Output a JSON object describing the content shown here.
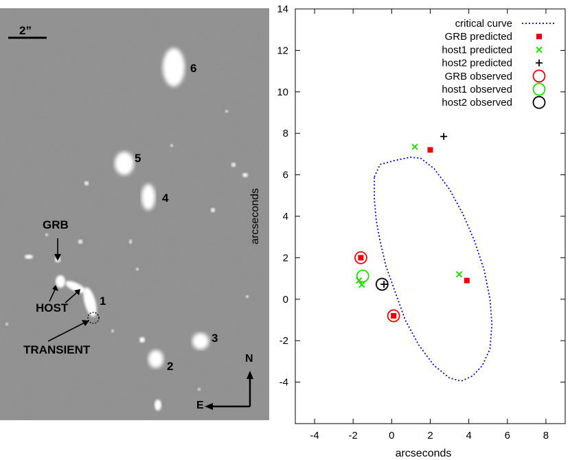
{
  "image_panel": {
    "scale_bar_label": "2”",
    "labels": {
      "grb": "GRB",
      "host": "HOST",
      "transient": "TRANSIENT",
      "n1": "1",
      "n2": "2",
      "n3": "3",
      "n4": "4",
      "n5": "5",
      "n6": "6",
      "north": "N",
      "east": "E"
    }
  },
  "chart_data": {
    "type": "scatter",
    "xlabel": "arcseconds",
    "ylabel": "arcseconds",
    "xlim": [
      -5,
      9
    ],
    "ylim": [
      -6,
      14
    ],
    "xticks": [
      -4,
      -2,
      0,
      2,
      4,
      6,
      8
    ],
    "yticks": [
      -4,
      -2,
      0,
      2,
      4,
      6,
      8,
      10,
      12,
      14
    ],
    "xtick_labels": [
      "-4",
      "-2",
      "0",
      "2",
      "4",
      "6",
      "8"
    ],
    "ytick_labels": [
      "-4",
      "-2",
      "0",
      "2",
      "4",
      "6",
      "8",
      "10",
      "12",
      "14"
    ],
    "grid": false,
    "legend_position": "top-right",
    "series": [
      {
        "name": "critical curve",
        "kind": "line",
        "style": "dotted",
        "color": "#0000cc",
        "x": [
          -0.9,
          -0.6,
          0.2,
          1.0,
          1.5,
          2.2,
          3.0,
          3.7,
          4.3,
          4.8,
          5.1,
          5.2,
          5.1,
          4.7,
          4.2,
          3.6,
          3.0,
          2.2,
          1.4,
          0.7,
          0.2,
          -0.3,
          -0.6,
          -0.8,
          -0.9,
          -0.9
        ],
        "y": [
          5.9,
          6.5,
          6.7,
          6.85,
          6.8,
          6.3,
          5.3,
          4.1,
          2.8,
          1.4,
          0.0,
          -1.2,
          -2.4,
          -3.2,
          -3.7,
          -3.95,
          -3.8,
          -3.2,
          -2.2,
          -1.0,
          0.3,
          1.6,
          2.8,
          3.8,
          4.8,
          5.9
        ]
      },
      {
        "name": "GRB predicted",
        "kind": "marker",
        "marker": "square",
        "color": "#ee0000",
        "x": [
          2.0,
          3.9,
          -1.6,
          0.1
        ],
        "y": [
          7.2,
          0.9,
          2.0,
          -0.8
        ]
      },
      {
        "name": "host1 predicted",
        "kind": "marker",
        "marker": "x",
        "color": "#22dd00",
        "x": [
          1.2,
          3.5,
          -1.7,
          -1.55
        ],
        "y": [
          7.35,
          1.2,
          0.9,
          0.7
        ]
      },
      {
        "name": "host2 predicted",
        "kind": "marker",
        "marker": "plus",
        "color": "#000000",
        "x": [
          2.7,
          -0.4
        ],
        "y": [
          7.85,
          0.72
        ]
      },
      {
        "name": "GRB observed",
        "kind": "marker",
        "marker": "circle",
        "color": "#ee0000",
        "x": [
          -1.6,
          0.1
        ],
        "y": [
          2.0,
          -0.8
        ]
      },
      {
        "name": "host1 observed",
        "kind": "marker",
        "marker": "circle",
        "color": "#22dd00",
        "x": [
          -1.5
        ],
        "y": [
          1.12
        ]
      },
      {
        "name": "host2 observed",
        "kind": "marker",
        "marker": "circle",
        "color": "#000000",
        "x": [
          -0.5
        ],
        "y": [
          0.72
        ]
      }
    ]
  }
}
